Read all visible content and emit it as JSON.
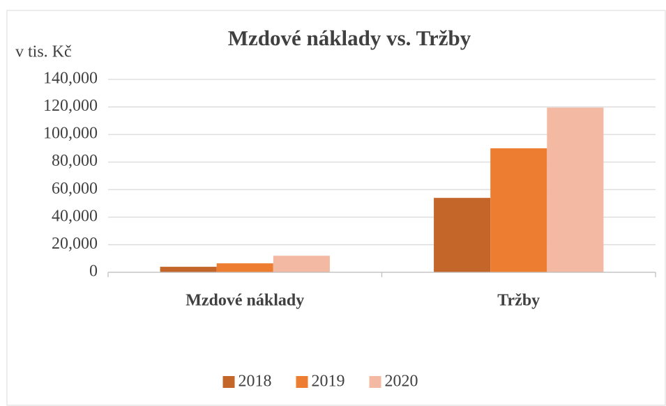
{
  "chart_data": {
    "type": "bar",
    "title": "Mzdové náklady vs. Tržby",
    "y_label": "v tis. Kč",
    "categories": [
      "Mzdové náklady",
      "Tržby"
    ],
    "series": [
      {
        "name": "2018",
        "color": "#c4652a",
        "values": [
          4000,
          54000
        ]
      },
      {
        "name": "2019",
        "color": "#ed7d31",
        "values": [
          6500,
          90000
        ]
      },
      {
        "name": "2020",
        "color": "#f4b9a3",
        "values": [
          12000,
          119500
        ]
      }
    ],
    "ylim": [
      0,
      140000
    ],
    "yticks": [
      0,
      {
        "value": 20000,
        "label": "20,000"
      },
      {
        "value": 40000,
        "label": "40,000"
      },
      {
        "value": 60000,
        "label": "60,000"
      },
      {
        "value": 80000,
        "label": "80,000"
      },
      {
        "value": 100000,
        "label": "100,000"
      },
      {
        "value": 120000,
        "label": "120,000"
      },
      {
        "value": 140000,
        "label": "140,000"
      }
    ],
    "grid": true,
    "legend": "bottom"
  }
}
